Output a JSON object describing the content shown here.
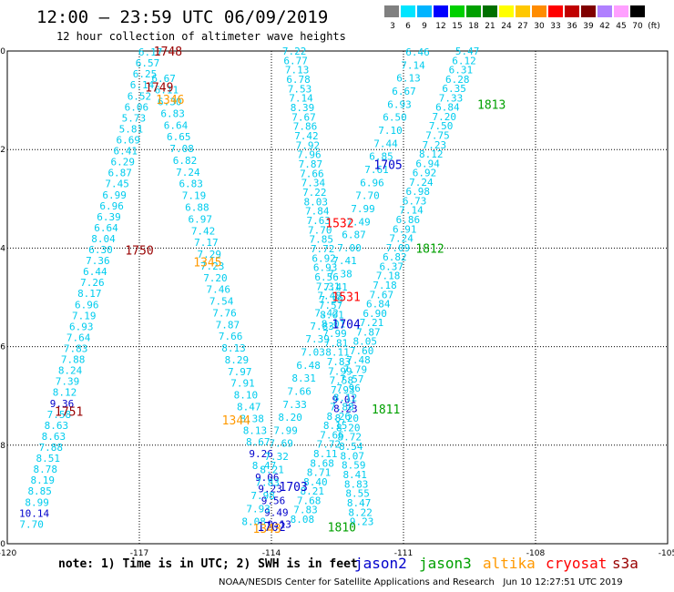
{
  "header": {
    "title": "12:00 — 23:59 UTC 06/09/2019",
    "subtitle": "12 hour collection of altimeter wave heights"
  },
  "legend": {
    "unit": "(ft)",
    "bins": [
      {
        "label": "3",
        "color": "#808080"
      },
      {
        "label": "6",
        "color": "#00e5ff"
      },
      {
        "label": "9",
        "color": "#00b4ff"
      },
      {
        "label": "12",
        "color": "#0000ff"
      },
      {
        "label": "15",
        "color": "#00d000"
      },
      {
        "label": "18",
        "color": "#00a000"
      },
      {
        "label": "21",
        "color": "#007000"
      },
      {
        "label": "24",
        "color": "#ffff00"
      },
      {
        "label": "27",
        "color": "#ffc800"
      },
      {
        "label": "30",
        "color": "#ff8c00"
      },
      {
        "label": "33",
        "color": "#ff0000"
      },
      {
        "label": "36",
        "color": "#c00000"
      },
      {
        "label": "39",
        "color": "#800000"
      },
      {
        "label": "42",
        "color": "#b080ff"
      },
      {
        "label": "45",
        "color": "#ffa0ff"
      },
      {
        "label": "70",
        "color": "#000000"
      }
    ]
  },
  "footer": {
    "note": "note: 1) Time is in UTC; 2) SWH is in feet",
    "satellites": [
      {
        "name": "jason2",
        "color": "#0000cc"
      },
      {
        "name": "jason3",
        "color": "#00a000"
      },
      {
        "name": "altika",
        "color": "#ff9900"
      },
      {
        "name": "cryosat",
        "color": "#ff0000"
      },
      {
        "name": "s3a",
        "color": "#990000"
      }
    ],
    "credit": "NOAA/NESDIS Center for Satellite Applications and Research   Jun 10 12:27:51 UTC 2019"
  },
  "chart_data": {
    "type": "scatter",
    "xlim": [
      -120,
      -105
    ],
    "ylim": [
      -10,
      0
    ],
    "x_ticks": [
      "-120",
      "-117",
      "-114",
      "-111",
      "-108",
      "-105"
    ],
    "y_ticks": [
      "0",
      "-2",
      "-4",
      "-6",
      "-8",
      "-10"
    ],
    "grid": true,
    "colors": {
      "cyan": "#00ccee",
      "blue": "#0000cc",
      "green": "#00a000",
      "orange": "#ff9900",
      "red": "#ff0000",
      "maroon": "#990000"
    },
    "tracks": [
      {
        "lon": [
          -116.75,
          -119.45
        ],
        "lat": [
          -0.02,
          -9.6
        ],
        "values": [
          "6.17",
          "6.57",
          "6.25",
          "6.14",
          "6.52",
          "6.06",
          "5.73",
          "5.81",
          "6.69",
          "6.41",
          "6.29",
          "6.87",
          "7.45",
          "6.99",
          "6.96",
          "6.39",
          "6.64",
          "8.04",
          "6.30",
          "7.36",
          "6.44",
          "7.26",
          "8.17",
          "6.96",
          "7.19",
          "6.93",
          "7.64",
          "7.83",
          "7.88",
          "8.24",
          "7.39",
          "8.12",
          "9.36",
          "7.58",
          "8.63",
          "8.63",
          "7.88",
          "8.51",
          "8.78",
          "8.19",
          "8.85",
          "8.99",
          "10.14",
          "7.70"
        ],
        "colors": {
          "32": "blue",
          "42": "blue"
        }
      },
      {
        "lon": [
          -116.45,
          -113.82
        ],
        "lat": [
          -0.55,
          -9.6
        ],
        "values": [
          "6.67",
          "6.11",
          "6.30",
          "6.83",
          "6.64",
          "6.65",
          "7.08",
          "6.82",
          "7.24",
          "6.83",
          "7.19",
          "6.88",
          "6.97",
          "7.42",
          "7.17",
          "7.29",
          "7.23",
          "7.20",
          "7.46",
          "7.54",
          "7.76",
          "7.87",
          "7.66",
          "8.13",
          "8.29",
          "7.97",
          "7.91",
          "8.10",
          "8.47",
          "8.38",
          "8.13",
          "8.67",
          "9.26",
          "8.47",
          "9.06",
          "9.23",
          "9.56",
          "9.49",
          "9.13"
        ],
        "colors": {
          "32": "blue",
          "34": "blue",
          "35": "blue",
          "36": "blue",
          "37": "blue",
          "38": "blue"
        }
      },
      {
        "lon": [
          -113.48,
          -111.95
        ],
        "lat": [
          -0.0,
          -9.55
        ],
        "values": [
          "7.22",
          "6.77",
          "7.13",
          "6.78",
          "7.53",
          "7.14",
          "8.39",
          "7.67",
          "7.86",
          "7.42",
          "7.92",
          "7.96",
          "7.87",
          "7.66",
          "7.34",
          "7.22",
          "8.03",
          "7.84",
          "7.63",
          "7.70",
          "7.85",
          "7.72",
          "6.92",
          "6.93",
          "6.56",
          "7.31",
          "7.48",
          "7.57",
          "8.01",
          "8.01",
          "7.99",
          "7.81",
          "8.11",
          "7.83",
          "7.99",
          "7.58",
          "7.93",
          "9.01",
          "8.23",
          "8.20",
          "8.20",
          "8.72",
          "8.54",
          "8.07",
          "8.59",
          "8.41",
          "8.83",
          "8.55",
          "8.47",
          "8.22",
          "9.23"
        ],
        "colors": {
          "37": "blue",
          "38": "blue"
        }
      },
      {
        "lon": [
          -110.68,
          -114.4
        ],
        "lat": [
          -0.02,
          -9.55
        ],
        "values": [
          "6.46",
          "7.14",
          "6.13",
          "6.67",
          "6.93",
          "6.50",
          "7.10",
          "7.44",
          "6.85",
          "7.61",
          "6.96",
          "7.70",
          "7.99",
          "7.49",
          "6.87",
          "7.00",
          "7.41",
          "7.38",
          "7.41",
          "7.39",
          "7.42",
          "7.83",
          "7.39",
          "7.03",
          "6.48",
          "8.31",
          "7.66",
          "7.33",
          "8.20",
          "7.99",
          "7.69",
          "7.32",
          "8.21",
          "7.83",
          "7.98",
          "7.93",
          "8.08"
        ]
      },
      {
        "lon": [
          -109.55,
          -113.3
        ],
        "lat": [
          -0.0,
          -9.5
        ],
        "values": [
          "5.47",
          "6.12",
          "6.31",
          "6.28",
          "6.35",
          "7.33",
          "6.84",
          "7.20",
          "7.50",
          "7.75",
          "7.23",
          "8.12",
          "6.94",
          "6.92",
          "7.24",
          "6.98",
          "6.73",
          "7.14",
          "6.86",
          "6.91",
          "7.24",
          "7.09",
          "6.82",
          "6.37",
          "7.18",
          "7.18",
          "7.67",
          "6.84",
          "6.90",
          "7.21",
          "7.87",
          "8.05",
          "7.60",
          "7.48",
          "7.79",
          "7.57",
          "7.96",
          "8.12",
          "7.88",
          "8.26",
          "8.15",
          "7.66",
          "7.72",
          "8.11",
          "8.68",
          "8.71",
          "8.40",
          "8.21",
          "7.68",
          "7.83",
          "8.08"
        ]
      }
    ],
    "pass_labels": [
      {
        "text": "1748",
        "lon": -116.35,
        "lat": -0.02,
        "color": "maroon"
      },
      {
        "text": "1749",
        "lon": -116.55,
        "lat": -0.75,
        "color": "maroon"
      },
      {
        "text": "1346",
        "lon": -116.3,
        "lat": -1.0,
        "color": "orange"
      },
      {
        "text": "1750",
        "lon": -117.0,
        "lat": -4.06,
        "color": "maroon"
      },
      {
        "text": "1345",
        "lon": -115.45,
        "lat": -4.3,
        "color": "orange"
      },
      {
        "text": "1751",
        "lon": -118.6,
        "lat": -7.33,
        "color": "maroon"
      },
      {
        "text": "1344",
        "lon": -114.8,
        "lat": -7.5,
        "color": "orange"
      },
      {
        "text": "1532",
        "lon": -112.45,
        "lat": -3.5,
        "color": "red"
      },
      {
        "text": "1531",
        "lon": -112.3,
        "lat": -5.0,
        "color": "red"
      },
      {
        "text": "1705",
        "lon": -111.35,
        "lat": -2.32,
        "color": "blue"
      },
      {
        "text": "1704",
        "lon": -112.3,
        "lat": -5.55,
        "color": "blue"
      },
      {
        "text": "1703",
        "lon": -113.5,
        "lat": -8.85,
        "color": "blue"
      },
      {
        "text": "1702",
        "lon": -114.0,
        "lat": -9.67,
        "color": "blue"
      },
      {
        "text": "1343",
        "lon": -114.1,
        "lat": -9.7,
        "color": "orange"
      },
      {
        "text": "1813",
        "lon": -109.0,
        "lat": -1.1,
        "color": "green"
      },
      {
        "text": "1812",
        "lon": -110.4,
        "lat": -4.02,
        "color": "green"
      },
      {
        "text": "1811",
        "lon": -111.4,
        "lat": -7.28,
        "color": "green"
      },
      {
        "text": "1810",
        "lon": -112.4,
        "lat": -9.68,
        "color": "green"
      }
    ]
  }
}
